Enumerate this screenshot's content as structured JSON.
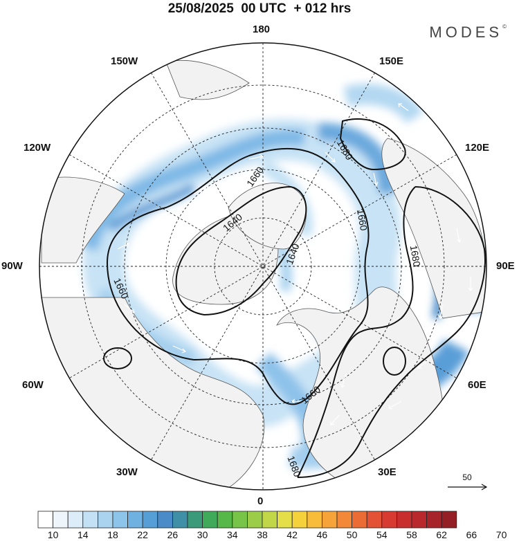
{
  "title": "25/08/2025  00 UTC  + 012 hrs",
  "brand": "MODES",
  "brand_mark": "©",
  "longitude_labels": {
    "top": "180",
    "bottom": "0",
    "left": "90W",
    "right": "90E",
    "upper_left_1": "150W",
    "upper_left_2": "120W",
    "lower_left_1": "60W",
    "lower_left_2": "30W",
    "upper_right_1": "150E",
    "upper_right_2": "120E",
    "lower_right_1": "60E",
    "lower_right_2": "30E"
  },
  "contour_labels": [
    "1660",
    "1640",
    "1680",
    "1660",
    "1640",
    "1660",
    "1680",
    "1660",
    "1680"
  ],
  "vector_reference": "50",
  "colorbar": {
    "tick_labels": [
      "10",
      "14",
      "18",
      "22",
      "26",
      "30",
      "34",
      "38",
      "42",
      "46",
      "50",
      "54",
      "58",
      "62",
      "66",
      "70"
    ],
    "colors": [
      "#ffffff",
      "#eef6fc",
      "#dcedf9",
      "#c3e1f4",
      "#a9d3ef",
      "#8dc4ea",
      "#6fb2e2",
      "#569fd6",
      "#4a8bc8",
      "#3f8fa6",
      "#3a9a7a",
      "#3faa5a",
      "#55b848",
      "#78c448",
      "#9ccd48",
      "#c2d748",
      "#e4df48",
      "#f5d23c",
      "#f8bc3a",
      "#f6a33a",
      "#f28838",
      "#ec6c36",
      "#e35234",
      "#d63a30",
      "#c82e2e",
      "#b8282c",
      "#a6242a",
      "#942026"
    ]
  }
}
